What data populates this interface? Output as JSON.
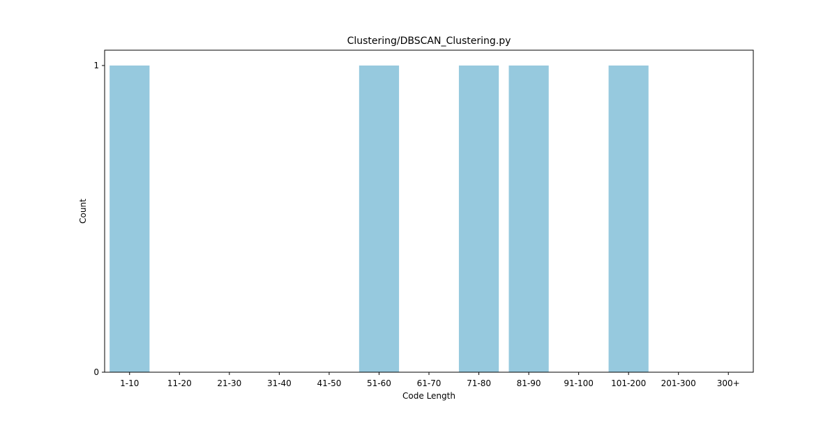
{
  "chart_data": {
    "type": "bar",
    "title": "Clustering/DBSCAN_Clustering.py",
    "xlabel": "Code Length",
    "ylabel": "Count",
    "categories": [
      "1-10",
      "11-20",
      "21-30",
      "31-40",
      "41-50",
      "51-60",
      "61-70",
      "71-80",
      "81-90",
      "91-100",
      "101-200",
      "201-300",
      "300+"
    ],
    "values": [
      1,
      0,
      0,
      0,
      0,
      1,
      0,
      1,
      1,
      0,
      1,
      0,
      0
    ],
    "ylim": [
      0,
      1.05
    ],
    "yticks": [
      0,
      1
    ],
    "grid": false,
    "legend": "none",
    "bar_color": "#96c9de"
  }
}
